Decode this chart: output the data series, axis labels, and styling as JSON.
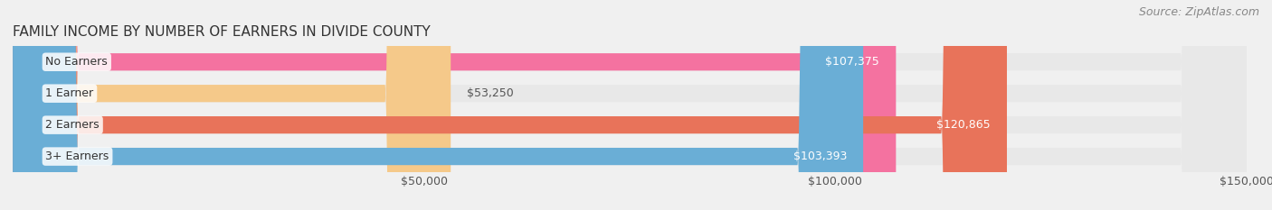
{
  "title": "FAMILY INCOME BY NUMBER OF EARNERS IN DIVIDE COUNTY",
  "source": "Source: ZipAtlas.com",
  "categories": [
    "No Earners",
    "1 Earner",
    "2 Earners",
    "3+ Earners"
  ],
  "values": [
    107375,
    53250,
    120865,
    103393
  ],
  "bar_colors": [
    "#f472a0",
    "#f5c98a",
    "#e8735a",
    "#6aaed6"
  ],
  "value_labels": [
    "$107,375",
    "$53,250",
    "$120,865",
    "$103,393"
  ],
  "xlim": [
    0,
    150000
  ],
  "xticks": [
    50000,
    100000,
    150000
  ],
  "xticklabels": [
    "$50,000",
    "$100,000",
    "$150,000"
  ],
  "background_color": "#f0f0f0",
  "bar_background_color": "#e8e8e8",
  "label_inside_threshold": 100000,
  "title_fontsize": 11,
  "source_fontsize": 9,
  "tick_fontsize": 9,
  "bar_label_fontsize": 9,
  "category_label_fontsize": 9
}
